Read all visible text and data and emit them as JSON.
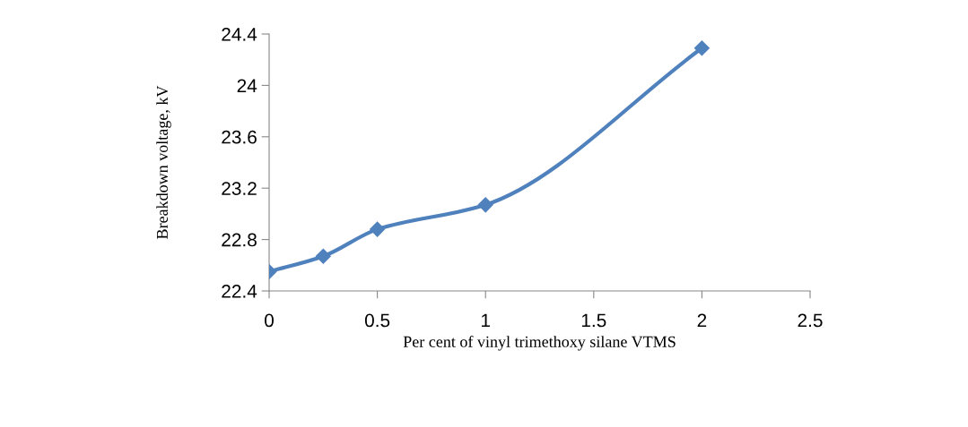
{
  "chart_data": {
    "type": "line",
    "xlabel": "Per cent of vinyl trimethoxy silane VTMS",
    "ylabel": "Breakdown voltage, kV",
    "x": [
      0,
      0.25,
      0.5,
      1,
      2
    ],
    "series": [
      {
        "color": "#4f81bd",
        "values": [
          22.55,
          22.67,
          22.88,
          23.07,
          24.29
        ]
      }
    ],
    "marker": "diamond",
    "line_style": "solid",
    "xlim": [
      0,
      2.5
    ],
    "xticks": [
      0,
      0.5,
      1,
      1.5,
      2,
      2.5
    ],
    "ylim": [
      22.4,
      24.4
    ],
    "yticks": [
      {
        "value": 22.4,
        "label": "22.4"
      },
      {
        "value": 22.8,
        "label": "22.8"
      },
      {
        "value": 23.2,
        "label": "23.2"
      },
      {
        "value": 23.6,
        "label": "23.6"
      },
      {
        "value": 24,
        "label": "24"
      },
      {
        "value": 24.4,
        "label": "24.4"
      }
    ],
    "grid": false,
    "legend": false
  }
}
